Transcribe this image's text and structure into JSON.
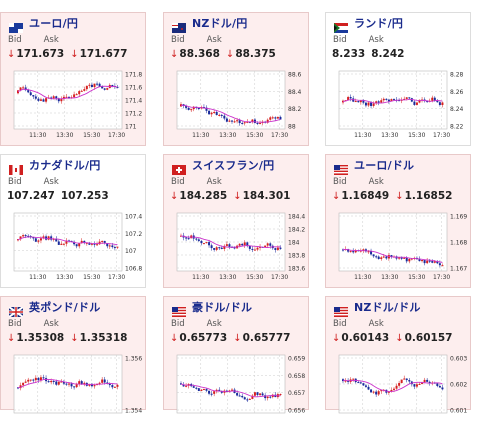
{
  "colors": {
    "accent": "#1a2b8c",
    "down": "#d02020",
    "up_candle": "#d62020",
    "down_candle": "#1a2b9c",
    "ma": "#cc33cc"
  },
  "cards": [
    {
      "pair": "ユーロ/円",
      "flag": "eu-flag",
      "bid_label": "Bid",
      "ask_label": "Ask",
      "bid": "171.673",
      "ask": "171.677",
      "trend": "down",
      "bg": "pink",
      "y_ticks": [
        "171.8",
        "171.6",
        "171.4",
        "171.2",
        "171"
      ],
      "x_ticks": [
        "11:30",
        "13:30",
        "15:30",
        "17:30"
      ]
    },
    {
      "pair": "NZドル/円",
      "flag": "nz-flag",
      "bid_label": "Bid",
      "ask_label": "Ask",
      "bid": "88.368",
      "ask": "88.375",
      "trend": "down",
      "bg": "pink",
      "y_ticks": [
        "88.6",
        "88.4",
        "88.2",
        "88"
      ],
      "x_ticks": [
        "11:30",
        "13:30",
        "15:30",
        "17:30"
      ]
    },
    {
      "pair": "ランド/円",
      "flag": "za-flag",
      "bid_label": "Bid",
      "ask_label": "Ask",
      "bid": "8.233",
      "ask": "8.242",
      "trend": "none",
      "bg": "white",
      "y_ticks": [
        "8.28",
        "8.26",
        "8.24",
        "8.22"
      ],
      "x_ticks": [
        "11:30",
        "13:30",
        "15:30",
        "17:30"
      ]
    },
    {
      "pair": "カナダドル/円",
      "flag": "ca-flag",
      "bid_label": "Bid",
      "ask_label": "Ask",
      "bid": "107.247",
      "ask": "107.253",
      "trend": "none",
      "bg": "white",
      "y_ticks": [
        "107.4",
        "107.2",
        "107",
        "106.8"
      ],
      "x_ticks": [
        "11:30",
        "13:30",
        "15:30",
        "17:30"
      ]
    },
    {
      "pair": "スイスフラン/円",
      "flag": "ch-flag",
      "bid_label": "Bid",
      "ask_label": "Ask",
      "bid": "184.285",
      "ask": "184.301",
      "trend": "down",
      "bg": "pink",
      "y_ticks": [
        "184.4",
        "184.2",
        "184",
        "183.8",
        "183.6"
      ],
      "x_ticks": [
        "11:30",
        "13:30",
        "15:30",
        "17:30"
      ]
    },
    {
      "pair": "ユーロ/ドル",
      "flag": "eu-us-flag",
      "bid_label": "Bid",
      "ask_label": "Ask",
      "bid": "1.16849",
      "ask": "1.16852",
      "trend": "down",
      "bg": "pink",
      "y_ticks": [
        "1.169",
        "1.168",
        "1.167"
      ],
      "x_ticks": [
        "11:30",
        "13:30",
        "15:30",
        "17:30"
      ]
    },
    {
      "pair": "英ポンド/ドル",
      "flag": "gb-us-flag",
      "bid_label": "Bid",
      "ask_label": "Ask",
      "bid": "1.35308",
      "ask": "1.35318",
      "trend": "down",
      "bg": "pink",
      "y_ticks": [
        "1.356",
        "1.354"
      ],
      "x_ticks": []
    },
    {
      "pair": "豪ドル/ドル",
      "flag": "au-us-flag",
      "bid_label": "Bid",
      "ask_label": "Ask",
      "bid": "0.65773",
      "ask": "0.65777",
      "trend": "down",
      "bg": "pink",
      "y_ticks": [
        "0.659",
        "0.658",
        "0.657",
        "0.656"
      ],
      "x_ticks": []
    },
    {
      "pair": "NZドル/ドル",
      "flag": "nz-us-flag",
      "bid_label": "Bid",
      "ask_label": "Ask",
      "bid": "0.60143",
      "ask": "0.60157",
      "trend": "down",
      "bg": "pink",
      "y_ticks": [
        "0.603",
        "0.602",
        "0.601"
      ],
      "x_ticks": []
    }
  ]
}
